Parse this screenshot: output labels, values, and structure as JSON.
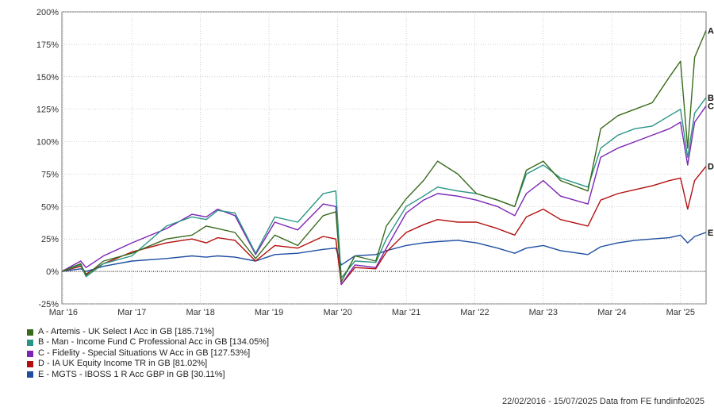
{
  "chart_data": {
    "type": "line",
    "title": "",
    "xlabel": "",
    "ylabel": "",
    "ylim": [
      -25,
      200
    ],
    "y_ticks": [
      -25,
      0,
      25,
      50,
      75,
      100,
      125,
      150,
      175,
      200
    ],
    "y_tick_labels": [
      "-25%",
      "0%",
      "25%",
      "50%",
      "75%",
      "100%",
      "125%",
      "150%",
      "175%",
      "200%"
    ],
    "x_range": [
      "2016-02-22",
      "2025-07-15"
    ],
    "x_ticks": [
      "2016-03",
      "2017-03",
      "2018-03",
      "2019-03",
      "2020-03",
      "2021-03",
      "2022-03",
      "2023-03",
      "2024-03",
      "2025-03"
    ],
    "x_tick_labels": [
      "Mar '16",
      "Mar '17",
      "Mar '18",
      "Mar '19",
      "Mar '20",
      "Mar '21",
      "Mar '22",
      "Mar '23",
      "Mar '24",
      "Mar '25"
    ],
    "grid": true,
    "legend_position": "bottom-left",
    "series": [
      {
        "name": "A - Artemis - UK Select I Acc in GB [185.71%]",
        "letter": "A",
        "color": "#3a6b1c",
        "x": [
          "2016-02-22",
          "2016-06-01",
          "2016-06-30",
          "2016-10-01",
          "2017-03-01",
          "2017-09-01",
          "2018-01-15",
          "2018-04-01",
          "2018-06-01",
          "2018-09-01",
          "2018-12-20",
          "2019-04-01",
          "2019-08-01",
          "2019-12-15",
          "2020-02-20",
          "2020-03-20",
          "2020-06-01",
          "2020-09-20",
          "2020-11-15",
          "2021-03-01",
          "2021-06-01",
          "2021-08-15",
          "2021-12-01",
          "2022-03-10",
          "2022-06-30",
          "2022-09-30",
          "2022-12-01",
          "2023-03-01",
          "2023-06-01",
          "2023-10-25",
          "2024-01-01",
          "2024-04-01",
          "2024-07-01",
          "2024-10-01",
          "2025-01-01",
          "2025-03-01",
          "2025-04-08",
          "2025-05-15",
          "2025-07-15"
        ],
        "y": [
          0,
          6,
          -3,
          8,
          14,
          25,
          28,
          35,
          33,
          30,
          10,
          28,
          20,
          43,
          46,
          -8,
          12,
          8,
          35,
          56,
          70,
          85,
          75,
          60,
          55,
          50,
          78,
          85,
          70,
          62,
          110,
          120,
          125,
          130,
          150,
          162,
          95,
          165,
          185.71
        ]
      },
      {
        "name": "B - Man - Income Fund C Professional Acc in GB [134.05%]",
        "letter": "B",
        "color": "#2a9585",
        "x": [
          "2016-02-22",
          "2016-06-01",
          "2016-06-30",
          "2016-10-01",
          "2017-03-01",
          "2017-09-01",
          "2018-01-15",
          "2018-04-01",
          "2018-06-01",
          "2018-09-01",
          "2018-12-20",
          "2019-04-01",
          "2019-08-01",
          "2019-12-15",
          "2020-02-20",
          "2020-03-20",
          "2020-06-01",
          "2020-09-20",
          "2020-11-15",
          "2021-03-01",
          "2021-06-01",
          "2021-08-15",
          "2021-12-01",
          "2022-03-10",
          "2022-06-30",
          "2022-09-30",
          "2022-12-01",
          "2023-03-01",
          "2023-06-01",
          "2023-10-25",
          "2024-01-01",
          "2024-04-01",
          "2024-07-01",
          "2024-10-01",
          "2025-01-01",
          "2025-03-01",
          "2025-04-08",
          "2025-05-15",
          "2025-07-15"
        ],
        "y": [
          0,
          5,
          -4,
          6,
          12,
          35,
          42,
          40,
          47,
          45,
          14,
          42,
          38,
          60,
          62,
          -5,
          8,
          7,
          25,
          50,
          58,
          65,
          62,
          60,
          55,
          50,
          75,
          82,
          72,
          65,
          95,
          105,
          110,
          112,
          120,
          125,
          88,
          122,
          134.05
        ]
      },
      {
        "name": "C - Fidelity - Special Situations W Acc in GB [127.53%]",
        "letter": "C",
        "color": "#7b25b4",
        "x": [
          "2016-02-22",
          "2016-06-01",
          "2016-06-30",
          "2016-10-01",
          "2017-03-01",
          "2017-09-01",
          "2018-01-15",
          "2018-04-01",
          "2018-06-01",
          "2018-09-01",
          "2018-12-20",
          "2019-04-01",
          "2019-08-01",
          "2019-12-15",
          "2020-02-20",
          "2020-03-20",
          "2020-06-01",
          "2020-09-20",
          "2020-11-15",
          "2021-03-01",
          "2021-06-01",
          "2021-08-15",
          "2021-12-01",
          "2022-03-10",
          "2022-06-30",
          "2022-09-30",
          "2022-12-01",
          "2023-03-01",
          "2023-06-01",
          "2023-10-25",
          "2024-01-01",
          "2024-04-01",
          "2024-07-01",
          "2024-10-01",
          "2025-01-01",
          "2025-03-01",
          "2025-04-08",
          "2025-05-15",
          "2025-07-15"
        ],
        "y": [
          0,
          8,
          3,
          12,
          22,
          33,
          44,
          42,
          48,
          43,
          13,
          38,
          32,
          52,
          50,
          -10,
          5,
          3,
          18,
          45,
          55,
          60,
          58,
          55,
          50,
          43,
          60,
          70,
          58,
          52,
          88,
          95,
          100,
          105,
          110,
          115,
          82,
          115,
          127.53
        ]
      },
      {
        "name": "D - IA UK Equity Income TR in GB [81.02%]",
        "letter": "D",
        "color": "#b40f0f",
        "x": [
          "2016-02-22",
          "2016-06-01",
          "2016-06-30",
          "2016-10-01",
          "2017-03-01",
          "2017-09-01",
          "2018-01-15",
          "2018-04-01",
          "2018-06-01",
          "2018-09-01",
          "2018-12-20",
          "2019-04-01",
          "2019-08-01",
          "2019-12-15",
          "2020-02-20",
          "2020-03-20",
          "2020-06-01",
          "2020-09-20",
          "2020-11-15",
          "2021-03-01",
          "2021-06-01",
          "2021-08-15",
          "2021-12-01",
          "2022-03-10",
          "2022-06-30",
          "2022-09-30",
          "2022-12-01",
          "2023-03-01",
          "2023-06-01",
          "2023-10-25",
          "2024-01-01",
          "2024-04-01",
          "2024-07-01",
          "2024-10-01",
          "2025-01-01",
          "2025-03-01",
          "2025-04-08",
          "2025-05-15",
          "2025-07-15"
        ],
        "y": [
          0,
          4,
          -2,
          6,
          15,
          22,
          25,
          22,
          26,
          24,
          8,
          20,
          18,
          27,
          25,
          -10,
          3,
          2,
          15,
          30,
          36,
          40,
          38,
          38,
          33,
          28,
          42,
          48,
          40,
          35,
          55,
          60,
          63,
          66,
          70,
          72,
          48,
          70,
          81.02
        ]
      },
      {
        "name": "E - MGTS - IBOSS 1 R Acc GBP in GB [30.11%]",
        "letter": "E",
        "color": "#1f4ea1",
        "x": [
          "2016-02-22",
          "2016-06-01",
          "2016-06-30",
          "2016-10-01",
          "2017-03-01",
          "2017-09-01",
          "2018-01-15",
          "2018-04-01",
          "2018-06-01",
          "2018-09-01",
          "2018-12-20",
          "2019-04-01",
          "2019-08-01",
          "2019-12-15",
          "2020-02-20",
          "2020-03-20",
          "2020-06-01",
          "2020-09-20",
          "2020-11-15",
          "2021-03-01",
          "2021-06-01",
          "2021-08-15",
          "2021-12-01",
          "2022-03-10",
          "2022-06-30",
          "2022-09-30",
          "2022-12-01",
          "2023-03-01",
          "2023-06-01",
          "2023-10-25",
          "2024-01-01",
          "2024-04-01",
          "2024-07-01",
          "2024-10-01",
          "2025-01-01",
          "2025-03-01",
          "2025-04-08",
          "2025-05-15",
          "2025-07-15"
        ],
        "y": [
          0,
          2,
          0,
          4,
          8,
          10,
          12,
          11,
          12,
          11,
          8,
          13,
          14,
          17,
          18,
          5,
          12,
          13,
          16,
          20,
          22,
          23,
          24,
          22,
          18,
          14,
          18,
          20,
          16,
          13,
          19,
          22,
          24,
          25,
          26,
          28,
          22,
          27,
          30.11
        ]
      }
    ]
  },
  "footer": {
    "date_range": "22/02/2016 - 15/07/2025",
    "source": "Data from FE fundinfo2025"
  }
}
